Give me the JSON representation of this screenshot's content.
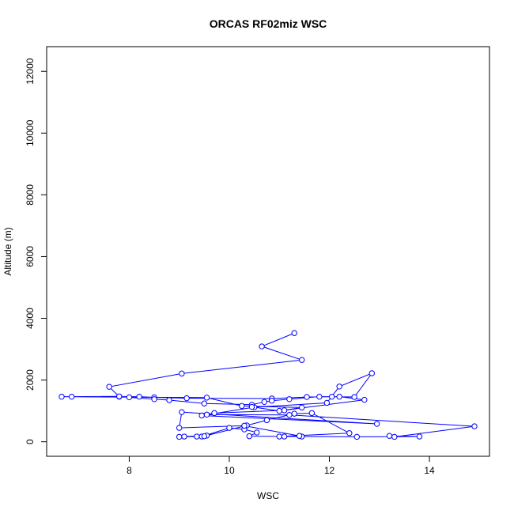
{
  "chart_data": {
    "type": "line",
    "title": "ORCAS RF02miz WSC",
    "xlabel": "WSC",
    "ylabel": "Altitude (m)",
    "xlim": [
      6.35,
      15.2
    ],
    "ylim": [
      -470,
      12800
    ],
    "x_ticks": [
      8,
      10,
      12,
      14
    ],
    "y_ticks": [
      0,
      2000,
      4000,
      6000,
      8000,
      10000,
      12000
    ],
    "x_tick_labels": [
      "8",
      "10",
      "12",
      "14"
    ],
    "y_tick_labels": [
      "0",
      "2000",
      "4000",
      "6000",
      "8000",
      "10000",
      "12000"
    ],
    "grid": false,
    "series_color": "#0000ff",
    "marker": "open-circle",
    "series": [
      {
        "points": [
          [
            11.3,
            3520
          ],
          [
            10.65,
            3090
          ],
          [
            11.45,
            2650
          ],
          [
            9.05,
            2210
          ],
          [
            7.6,
            1780
          ],
          [
            7.8,
            1460
          ],
          [
            8.2,
            1460
          ],
          [
            8.5,
            1440
          ],
          [
            9.15,
            1410
          ],
          [
            10.85,
            1400
          ],
          [
            11.55,
            1450
          ],
          [
            12.2,
            1460
          ],
          [
            12.7,
            1360
          ],
          [
            11.1,
            1020
          ],
          [
            9.7,
            930
          ],
          [
            9.55,
            880
          ],
          [
            11.2,
            870
          ],
          [
            14.9,
            500
          ],
          [
            13.3,
            160
          ],
          [
            13.2,
            190
          ],
          [
            13.8,
            170
          ],
          [
            12.55,
            160
          ],
          [
            11.45,
            170
          ],
          [
            10.4,
            180
          ],
          [
            10.55,
            300
          ],
          [
            10.3,
            400
          ],
          [
            10.0,
            450
          ],
          [
            9.45,
            170
          ],
          [
            9.55,
            200
          ],
          [
            9.1,
            170
          ],
          [
            9.0,
            160
          ],
          [
            9.35,
            170
          ],
          [
            9.5,
            180
          ],
          [
            10.35,
            530
          ],
          [
            10.75,
            700
          ],
          [
            11.3,
            910
          ],
          [
            11.65,
            930
          ],
          [
            12.4,
            280
          ],
          [
            11.0,
            170
          ],
          [
            11.1,
            170
          ],
          [
            11.4,
            190
          ],
          [
            10.3,
            520
          ],
          [
            9.0,
            450
          ],
          [
            9.05,
            960
          ],
          [
            12.95,
            580
          ],
          [
            9.45,
            850
          ],
          [
            10.5,
            1120
          ],
          [
            11.95,
            1260
          ],
          [
            12.2,
            1790
          ],
          [
            12.85,
            2220
          ],
          [
            12.5,
            1450
          ],
          [
            12.05,
            1460
          ],
          [
            11.8,
            1460
          ],
          [
            11.2,
            1380
          ],
          [
            10.85,
            1330
          ],
          [
            10.7,
            1290
          ],
          [
            10.45,
            1200
          ],
          [
            9.5,
            1240
          ],
          [
            8.8,
            1350
          ],
          [
            8.5,
            1380
          ],
          [
            8.0,
            1440
          ],
          [
            7.8,
            1470
          ],
          [
            6.85,
            1460
          ],
          [
            6.65,
            1460
          ],
          [
            9.55,
            1430
          ],
          [
            10.25,
            1160
          ],
          [
            11.45,
            1110
          ],
          [
            11.0,
            1000
          ],
          [
            10.45,
            1130
          ]
        ]
      }
    ]
  }
}
